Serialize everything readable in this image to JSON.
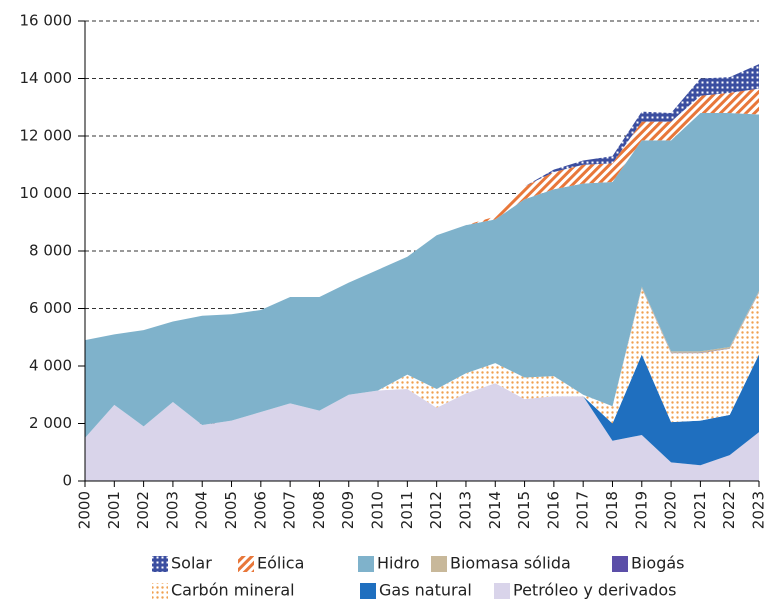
{
  "chart_data": {
    "type": "stacked_area",
    "categories": [
      "2000",
      "2001",
      "2002",
      "2003",
      "2004",
      "2005",
      "2006",
      "2007",
      "2008",
      "2009",
      "2010",
      "2011",
      "2012",
      "2013",
      "2014",
      "2015",
      "2016",
      "2017",
      "2018",
      "2019",
      "2020",
      "2021",
      "2022",
      "2023"
    ],
    "series": [
      {
        "name": "Petróleo y derivados",
        "color": "#d9d4ea",
        "pattern": "solid",
        "values": [
          1500,
          2650,
          1900,
          2750,
          1950,
          2100,
          2400,
          2700,
          2450,
          3000,
          3150,
          3200,
          2550,
          3050,
          3400,
          2850,
          2950,
          2950,
          1400,
          1600,
          650,
          550,
          900,
          1700
        ]
      },
      {
        "name": "Gas natural",
        "color": "#1f6fbf",
        "pattern": "solid",
        "values": [
          0,
          0,
          0,
          0,
          0,
          0,
          0,
          0,
          0,
          0,
          0,
          0,
          0,
          0,
          0,
          0,
          0,
          0,
          600,
          2800,
          1400,
          1550,
          1400,
          2700
        ]
      },
      {
        "name": "Carbón mineral",
        "color": "#f0a050",
        "pattern": "dots",
        "values": [
          0,
          0,
          0,
          0,
          0,
          0,
          0,
          0,
          0,
          0,
          0,
          500,
          650,
          700,
          700,
          750,
          700,
          50,
          600,
          2300,
          2400,
          2350,
          2300,
          2150
        ]
      },
      {
        "name": "Biogás",
        "color": "#5b4ea8",
        "pattern": "solid",
        "values": [
          0,
          0,
          0,
          0,
          0,
          0,
          0,
          0,
          0,
          0,
          0,
          0,
          0,
          0,
          0,
          0,
          0,
          0,
          0,
          10,
          10,
          10,
          10,
          10
        ]
      },
      {
        "name": "Biomasa sólida",
        "color": "#c8b89a",
        "pattern": "solid",
        "values": [
          0,
          0,
          0,
          0,
          0,
          0,
          0,
          0,
          0,
          0,
          0,
          0,
          0,
          0,
          0,
          0,
          0,
          0,
          0,
          50,
          50,
          50,
          50,
          50
        ]
      },
      {
        "name": "Hidro",
        "color": "#7fb2cb",
        "pattern": "solid",
        "values": [
          3400,
          2450,
          3350,
          2800,
          3800,
          3700,
          3550,
          3700,
          3950,
          3900,
          4200,
          4100,
          5350,
          5150,
          5000,
          6200,
          6500,
          7350,
          7800,
          5090,
          7340,
          8290,
          8140,
          6140
        ]
      },
      {
        "name": "Eólica",
        "color": "#e8773a",
        "pattern": "hatch",
        "values": [
          0,
          0,
          0,
          0,
          0,
          0,
          0,
          0,
          0,
          0,
          0,
          0,
          0,
          0,
          100,
          450,
          600,
          650,
          650,
          650,
          650,
          600,
          700,
          900
        ]
      },
      {
        "name": "Solar",
        "color": "#3b4ea0",
        "pattern": "grid",
        "values": [
          0,
          0,
          0,
          0,
          0,
          0,
          0,
          0,
          0,
          0,
          0,
          0,
          0,
          0,
          0,
          0,
          80,
          150,
          250,
          350,
          300,
          600,
          550,
          850
        ]
      }
    ],
    "ylim": [
      0,
      16000
    ],
    "yticks": [
      0,
      {
        "value": 2000,
        "label": "2 000"
      },
      {
        "value": 4000,
        "label": "4 000"
      },
      {
        "value": 6000,
        "label": "6 000"
      },
      {
        "value": 8000,
        "label": "8 000"
      },
      {
        "value": 10000,
        "label": "10 000"
      },
      {
        "value": 12000,
        "label": "12 000"
      },
      {
        "value": 14000,
        "label": "14 000"
      },
      {
        "value": 16000,
        "label": "16 000"
      }
    ],
    "grid": true
  }
}
